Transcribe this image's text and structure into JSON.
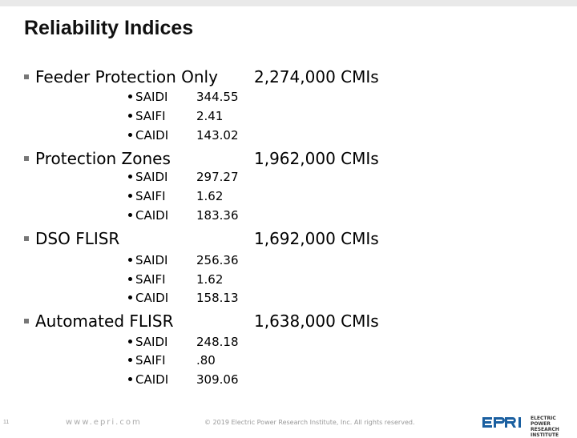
{
  "title": "Reliability Indices",
  "sections": [
    {
      "label": "Feeder Protection Only",
      "cmis": "2,274,000 CMIs",
      "metrics": [
        {
          "name": "SAIDI",
          "value": "344.55"
        },
        {
          "name": "SAIFI",
          "value": "2.41"
        },
        {
          "name": "CAIDI",
          "value": "143.02"
        }
      ]
    },
    {
      "label": "Protection Zones",
      "cmis": "1,962,000 CMIs",
      "metrics": [
        {
          "name": "SAIDI",
          "value": "297.27"
        },
        {
          "name": "SAIFI",
          "value": "1.62"
        },
        {
          "name": "CAIDI",
          "value": "183.36"
        }
      ]
    },
    {
      "label": "DSO FLISR",
      "cmis": "1,692,000 CMIs",
      "metrics": [
        {
          "name": "SAIDI",
          "value": "256.36"
        },
        {
          "name": "SAIFI",
          "value": "1.62"
        },
        {
          "name": "CAIDI",
          "value": "158.13"
        }
      ]
    },
    {
      "label": "Automated FLISR",
      "cmis": "1,638,000 CMIs",
      "metrics": [
        {
          "name": "SAIDI",
          "value": "248.18"
        },
        {
          "name": "SAIFI",
          "value": ".80"
        },
        {
          "name": "CAIDI",
          "value": "309.06"
        }
      ]
    }
  ],
  "footer": {
    "page_number": "11",
    "url": "www.epri.com",
    "copyright": "© 2019 Electric Power Research Institute, Inc. All rights reserved.",
    "logo_text": "EPRI",
    "logo_subtext": "ELECTRIC POWER RESEARCH INSTITUTE"
  },
  "colors": {
    "logo_blue": "#1a5fa0",
    "top_bar": "#e9e9e9"
  }
}
